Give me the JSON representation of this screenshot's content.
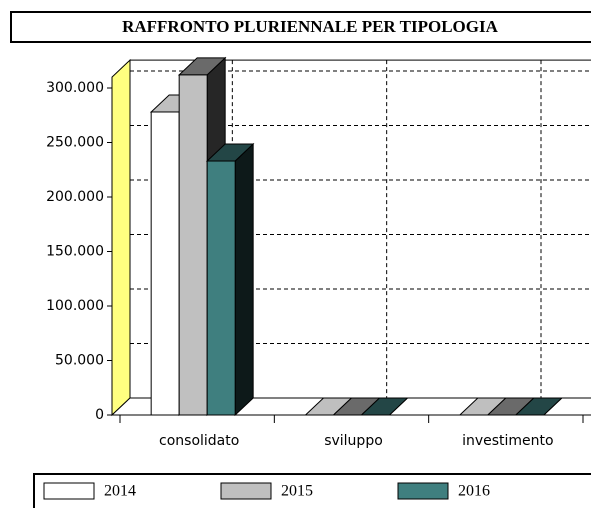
{
  "chart_data": {
    "type": "bar3d",
    "title": "RAFFRONTO PLURIENNALE PER TIPOLOGIA",
    "categories": [
      "consolidato",
      "sviluppo",
      "investimento"
    ],
    "series": [
      {
        "name": "2014",
        "color": "#ffffff",
        "values": [
          278000,
          0,
          0
        ]
      },
      {
        "name": "2015",
        "color": "#c0c0c0",
        "values": [
          312000,
          0,
          0
        ]
      },
      {
        "name": "2016",
        "color": "#3f7f7f",
        "values": [
          233000,
          0,
          0
        ]
      }
    ],
    "ylim": [
      0,
      310000
    ],
    "yticks": [
      0,
      {
        "value": 50000,
        "label": "50.000"
      },
      {
        "value": 100000,
        "label": "100.000"
      },
      {
        "value": 150000,
        "label": "150.000"
      },
      {
        "value": 200000,
        "label": "200.000"
      },
      {
        "value": 250000,
        "label": "250.000"
      },
      {
        "value": 300000,
        "label": "300.000"
      }
    ],
    "grid": true,
    "legend": "bottom"
  }
}
